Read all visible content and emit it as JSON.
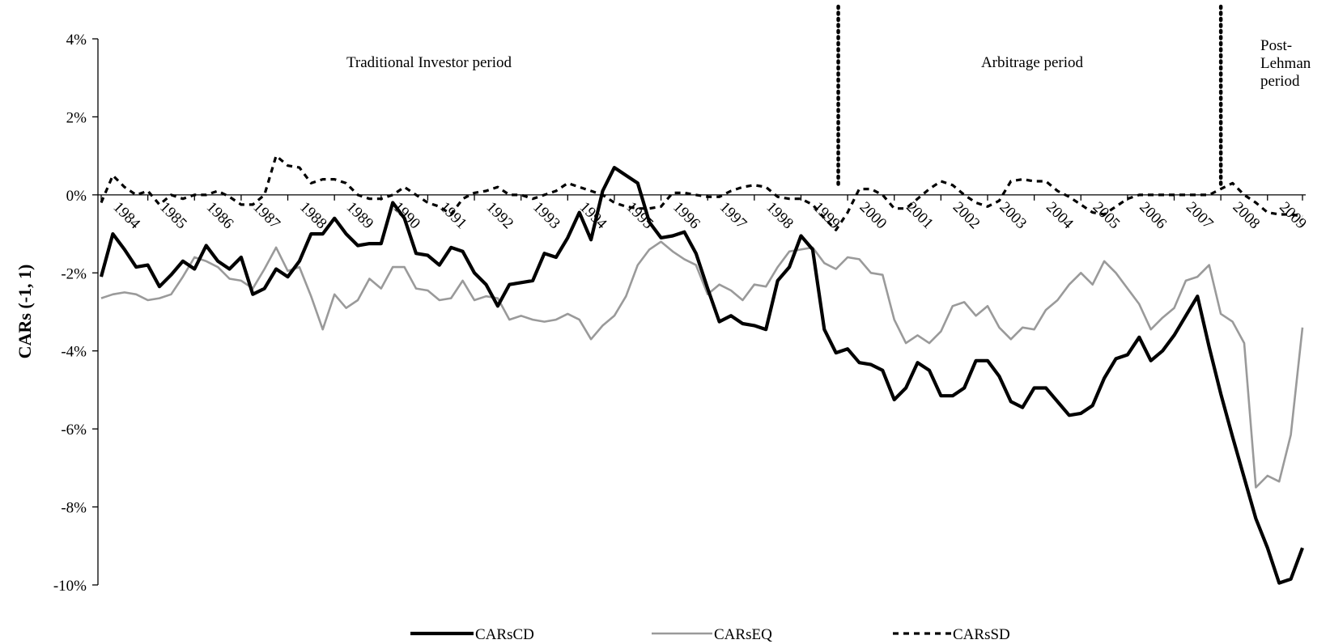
{
  "chart_data": {
    "type": "line",
    "ylabel": "CARs (-1, 1)",
    "ylim": [
      -10,
      4
    ],
    "yticks": [
      "4%",
      "2%",
      "0%",
      "-2%",
      "-4%",
      "-6%",
      "-8%",
      "-10%"
    ],
    "x_start_year": 1984,
    "points_per_year": 4,
    "year_labels": [
      "1984",
      "1985",
      "1986",
      "1987",
      "1988",
      "1989",
      "1990",
      "1991",
      "1992",
      "1993",
      "1994",
      "1995",
      "1996",
      "1997",
      "1998",
      "1999",
      "2000",
      "2001",
      "2002",
      "2003",
      "2004",
      "2005",
      "2006",
      "2007",
      "2008",
      "2009"
    ],
    "period_labels": [
      "Traditional Investor period",
      "Arbitrage period",
      "Post-\nLehman\nperiod"
    ],
    "period_dividers_year": [
      1999.8,
      2008.0
    ],
    "series": [
      {
        "name": "CARsCD",
        "color": "#000000",
        "style": "solid-thick",
        "values": [
          -2.1,
          -1.0,
          -1.4,
          -1.85,
          -1.8,
          -2.35,
          -2.05,
          -1.7,
          -1.9,
          -1.3,
          -1.7,
          -1.9,
          -1.6,
          -2.55,
          -2.4,
          -1.9,
          -2.1,
          -1.7,
          -1.0,
          -1.0,
          -0.6,
          -1.0,
          -1.3,
          -1.25,
          -1.25,
          -0.2,
          -0.6,
          -1.5,
          -1.55,
          -1.8,
          -1.35,
          -1.45,
          -2.0,
          -2.3,
          -2.85,
          -2.3,
          -2.25,
          -2.2,
          -1.5,
          -1.6,
          -1.1,
          -0.45,
          -1.15,
          0.1,
          0.7,
          0.5,
          0.3,
          -0.7,
          -1.1,
          -1.05,
          -0.95,
          -1.5,
          -2.4,
          -3.25,
          -3.1,
          -3.3,
          -3.35,
          -3.45,
          -2.2,
          -1.85,
          -1.05,
          -1.4,
          -3.45,
          -4.05,
          -3.95,
          -4.3,
          -4.35,
          -4.5,
          -5.25,
          -4.95,
          -4.3,
          -4.5,
          -5.15,
          -5.15,
          -4.95,
          -4.25,
          -4.25,
          -4.65,
          -5.3,
          -5.45,
          -4.95,
          -4.95,
          -5.3,
          -5.65,
          -5.6,
          -5.4,
          -4.7,
          -4.2,
          -4.1,
          -3.65,
          -4.25,
          -4.0,
          -3.6,
          -3.1,
          -2.6,
          -3.9,
          -5.1,
          -6.2,
          -7.25,
          -8.3,
          -9.05,
          -9.95,
          -9.85,
          -9.05
        ]
      },
      {
        "name": "CARsEQ",
        "color": "#9a9a9a",
        "style": "solid",
        "values": [
          -2.65,
          -2.55,
          -2.5,
          -2.55,
          -2.7,
          -2.65,
          -2.55,
          -2.1,
          -1.6,
          -1.7,
          -1.85,
          -2.15,
          -2.2,
          -2.4,
          -1.9,
          -1.35,
          -1.95,
          -1.85,
          -2.6,
          -3.45,
          -2.55,
          -2.9,
          -2.7,
          -2.15,
          -2.4,
          -1.85,
          -1.85,
          -2.4,
          -2.45,
          -2.7,
          -2.65,
          -2.2,
          -2.7,
          -2.6,
          -2.65,
          -3.2,
          -3.1,
          -3.2,
          -3.25,
          -3.2,
          -3.05,
          -3.2,
          -3.7,
          -3.35,
          -3.1,
          -2.6,
          -1.8,
          -1.4,
          -1.2,
          -1.45,
          -1.65,
          -1.8,
          -2.55,
          -2.3,
          -2.45,
          -2.7,
          -2.3,
          -2.35,
          -1.85,
          -1.45,
          -1.4,
          -1.35,
          -1.75,
          -1.9,
          -1.6,
          -1.65,
          -2.0,
          -2.05,
          -3.2,
          -3.8,
          -3.6,
          -3.8,
          -3.5,
          -2.85,
          -2.75,
          -3.1,
          -2.85,
          -3.4,
          -3.7,
          -3.4,
          -3.45,
          -2.95,
          -2.7,
          -2.3,
          -2.0,
          -2.3,
          -1.7,
          -2.0,
          -2.4,
          -2.8,
          -3.45,
          -3.15,
          -2.9,
          -2.2,
          -2.1,
          -1.8,
          -3.05,
          -3.25,
          -3.8,
          -7.5,
          -7.2,
          -7.35,
          -6.15,
          -3.4
        ]
      },
      {
        "name": "CARsSD",
        "color": "#000000",
        "style": "dashed",
        "values": [
          -0.2,
          0.5,
          0.2,
          0.0,
          0.1,
          -0.25,
          0.0,
          -0.1,
          0.0,
          0.0,
          0.1,
          -0.05,
          -0.25,
          -0.25,
          0.0,
          1.0,
          0.75,
          0.7,
          0.3,
          0.4,
          0.4,
          0.3,
          0.0,
          -0.1,
          -0.1,
          0.0,
          0.2,
          0.0,
          -0.2,
          -0.3,
          -0.5,
          -0.1,
          0.05,
          0.1,
          0.2,
          0.0,
          0.0,
          -0.1,
          0.0,
          0.1,
          0.3,
          0.2,
          0.1,
          0.0,
          -0.2,
          -0.3,
          -0.35,
          -0.35,
          -0.3,
          0.05,
          0.05,
          0.0,
          -0.05,
          -0.05,
          0.1,
          0.2,
          0.25,
          0.2,
          -0.05,
          -0.1,
          -0.1,
          -0.25,
          -0.6,
          -0.9,
          -0.45,
          0.15,
          0.15,
          0.0,
          -0.35,
          -0.35,
          -0.1,
          0.15,
          0.35,
          0.25,
          0.0,
          -0.2,
          -0.3,
          -0.15,
          0.35,
          0.4,
          0.35,
          0.35,
          0.1,
          -0.05,
          -0.25,
          -0.45,
          -0.5,
          -0.3,
          -0.1,
          0.0,
          0.0,
          0.0,
          0.0,
          0.0,
          0.0,
          0.0,
          0.15,
          0.3,
          0.0,
          -0.2,
          -0.45,
          -0.5,
          -0.5,
          -0.55
        ]
      }
    ],
    "legend_position": "bottom",
    "grid": false
  }
}
